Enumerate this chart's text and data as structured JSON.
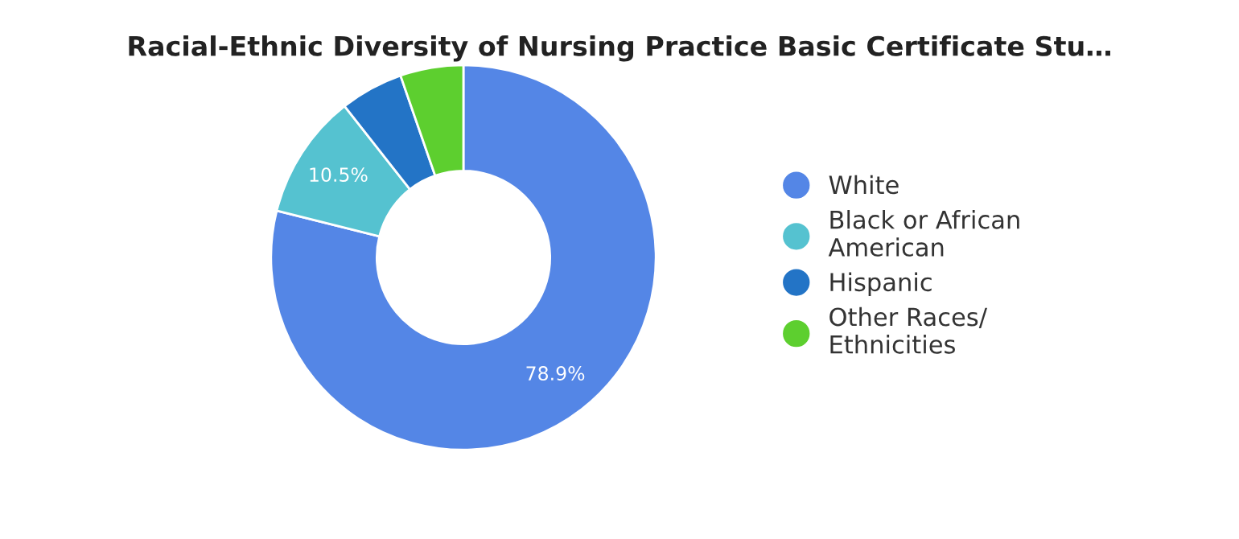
{
  "chart_data": {
    "type": "donut",
    "title": "Racial-Ethnic Diversity of Nursing Practice Basic Certificate Stu…",
    "categories": [
      "White",
      "Black or African American",
      "Hispanic",
      "Other Races/ Ethnicities"
    ],
    "values": [
      78.9,
      10.5,
      5.3,
      5.3
    ],
    "colors": [
      "#5486e6",
      "#55c2d0",
      "#2374c6",
      "#5dcf2f"
    ],
    "value_labels": [
      "78.9%",
      "10.5%",
      null,
      null
    ],
    "legend": "right"
  }
}
